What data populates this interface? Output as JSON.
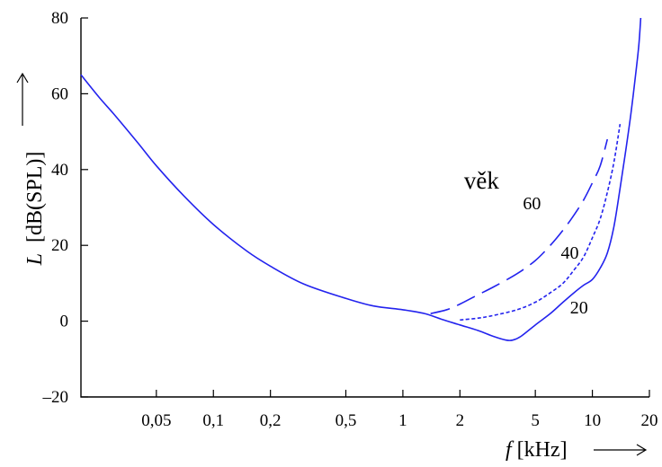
{
  "chart_data": {
    "type": "line",
    "title": "",
    "xlabel": "f[kHz]",
    "xlabel_italic_part": "f",
    "xlabel_rest": "[kHz]",
    "ylabel": "L [dB(SPL)]",
    "ylabel_italic_part": "L",
    "ylabel_rest": "[dB(SPL)]",
    "x_scale": "log",
    "xlim": [
      0.02,
      20
    ],
    "ylim": [
      -20,
      80
    ],
    "x_ticks": [
      {
        "value": 0.05,
        "label": "0,05"
      },
      {
        "value": 0.1,
        "label": "0,1"
      },
      {
        "value": 0.2,
        "label": "0,2"
      },
      {
        "value": 0.5,
        "label": "0,5"
      },
      {
        "value": 1,
        "label": "1"
      },
      {
        "value": 2,
        "label": "2"
      },
      {
        "value": 5,
        "label": "5"
      },
      {
        "value": 10,
        "label": "10"
      },
      {
        "value": 20,
        "label": "20"
      }
    ],
    "y_ticks": [
      {
        "value": -20,
        "label": "–20"
      },
      {
        "value": 0,
        "label": "0"
      },
      {
        "value": 20,
        "label": "20"
      },
      {
        "value": 40,
        "label": "40"
      },
      {
        "value": 60,
        "label": "60"
      },
      {
        "value": 80,
        "label": "80"
      }
    ],
    "grid": false,
    "series": [
      {
        "label": "20",
        "style": "solid",
        "points": [
          [
            0.02,
            65
          ],
          [
            0.025,
            59
          ],
          [
            0.03,
            54.5
          ],
          [
            0.04,
            47
          ],
          [
            0.05,
            41
          ],
          [
            0.07,
            33
          ],
          [
            0.1,
            25.5
          ],
          [
            0.15,
            18.5
          ],
          [
            0.2,
            14.5
          ],
          [
            0.3,
            9.8
          ],
          [
            0.5,
            6
          ],
          [
            0.7,
            4
          ],
          [
            1,
            3
          ],
          [
            1.3,
            2
          ],
          [
            1.6,
            0.5
          ],
          [
            2,
            -1
          ],
          [
            2.5,
            -2.5
          ],
          [
            3,
            -4
          ],
          [
            3.5,
            -5
          ],
          [
            3.8,
            -5
          ],
          [
            4.2,
            -4
          ],
          [
            5,
            -1
          ],
          [
            6,
            2
          ],
          [
            7,
            5
          ],
          [
            8,
            7.5
          ],
          [
            9,
            9.5
          ],
          [
            10,
            11
          ],
          [
            11,
            14
          ],
          [
            12,
            18
          ],
          [
            13,
            25
          ],
          [
            14,
            35
          ],
          [
            15,
            45
          ],
          [
            16,
            55
          ],
          [
            17,
            66
          ],
          [
            17.6,
            73
          ],
          [
            18,
            80
          ]
        ],
        "label_pos": [
          8.5,
          2
        ]
      },
      {
        "label": "40",
        "style": "dotted",
        "points": [
          [
            2,
            0.3
          ],
          [
            2.5,
            0.8
          ],
          [
            3,
            1.5
          ],
          [
            4,
            3
          ],
          [
            5,
            5
          ],
          [
            6,
            7.5
          ],
          [
            7,
            10
          ],
          [
            8,
            13.5
          ],
          [
            9,
            17
          ],
          [
            10,
            22
          ],
          [
            11,
            27
          ],
          [
            12,
            34
          ],
          [
            13,
            42
          ],
          [
            14,
            52
          ]
        ],
        "label_pos": [
          7.6,
          16.5
        ]
      },
      {
        "label": "60",
        "style": "dashed",
        "points": [
          [
            1.4,
            2
          ],
          [
            1.7,
            3
          ],
          [
            2,
            4.5
          ],
          [
            2.5,
            7
          ],
          [
            3,
            9
          ],
          [
            4,
            12.5
          ],
          [
            5,
            16
          ],
          [
            6,
            20
          ],
          [
            7,
            24
          ],
          [
            8,
            28
          ],
          [
            9,
            32
          ],
          [
            10,
            36.5
          ],
          [
            11,
            41
          ],
          [
            12,
            48
          ]
        ],
        "label_pos": [
          4.8,
          29.5
        ]
      }
    ],
    "annotations": [
      {
        "text": "věk",
        "x": 2.6,
        "y": 35
      }
    ],
    "colors": {
      "curve": "#2323ee",
      "axis": "#000000"
    }
  }
}
